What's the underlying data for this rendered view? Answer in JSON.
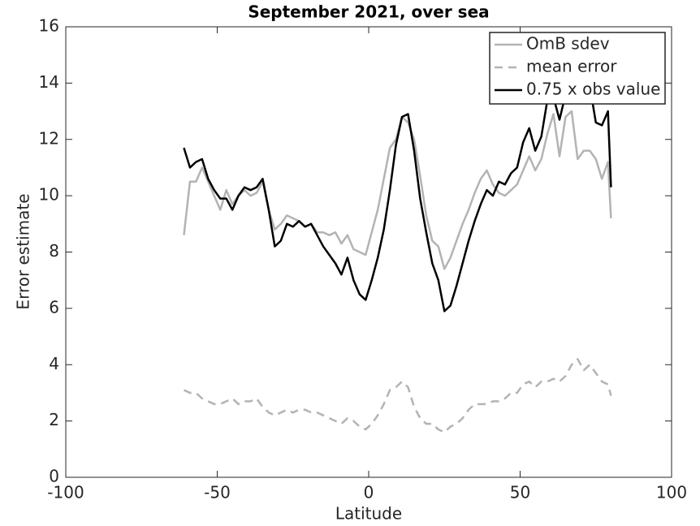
{
  "chart_data": {
    "type": "line",
    "title": "September 2021, over sea",
    "xlabel": "Latitude",
    "ylabel": "Error estimate",
    "x": [
      -61,
      -59,
      -57,
      -55,
      -53,
      -51,
      -49,
      -47,
      -45,
      -43,
      -41,
      -39,
      -37,
      -35,
      -33,
      -31,
      -29,
      -27,
      -25,
      -23,
      -21,
      -19,
      -17,
      -15,
      -13,
      -11,
      -9,
      -7,
      -5,
      -3,
      -1,
      1,
      3,
      5,
      7,
      9,
      11,
      13,
      15,
      17,
      19,
      21,
      23,
      25,
      27,
      29,
      31,
      33,
      35,
      37,
      39,
      41,
      43,
      45,
      47,
      49,
      51,
      53,
      55,
      57,
      59,
      61,
      63,
      65,
      67,
      69,
      71,
      73,
      75,
      77,
      79,
      80
    ],
    "series": [
      {
        "name": "OmB sdev",
        "color": "#b3b3b3",
        "style": "solid",
        "values": [
          8.6,
          10.5,
          10.5,
          11.0,
          10.5,
          10.0,
          9.5,
          10.2,
          9.7,
          10.0,
          10.2,
          10.0,
          10.1,
          10.5,
          9.5,
          8.8,
          9.0,
          9.3,
          9.2,
          9.1,
          8.9,
          9.0,
          8.7,
          8.7,
          8.6,
          8.7,
          8.3,
          8.6,
          8.1,
          8.0,
          7.9,
          8.7,
          9.5,
          10.6,
          11.7,
          12.0,
          12.8,
          12.6,
          12.0,
          10.7,
          9.3,
          8.4,
          8.2,
          7.4,
          7.8,
          8.4,
          9.0,
          9.5,
          10.1,
          10.6,
          10.9,
          10.4,
          10.1,
          10.0,
          10.2,
          10.4,
          10.9,
          11.4,
          10.9,
          11.3,
          12.2,
          12.9,
          11.4,
          12.8,
          13.0,
          11.3,
          11.6,
          11.6,
          11.3,
          10.6,
          11.2,
          9.2
        ]
      },
      {
        "name": "mean error",
        "color": "#b3b3b3",
        "style": "dashed",
        "values": [
          3.1,
          3.0,
          3.0,
          2.8,
          2.7,
          2.6,
          2.6,
          2.7,
          2.8,
          2.6,
          2.7,
          2.7,
          2.8,
          2.5,
          2.3,
          2.2,
          2.3,
          2.4,
          2.3,
          2.4,
          2.4,
          2.3,
          2.3,
          2.2,
          2.1,
          2.0,
          1.9,
          2.1,
          2.0,
          1.8,
          1.7,
          1.9,
          2.2,
          2.6,
          3.1,
          3.2,
          3.4,
          3.2,
          2.5,
          2.1,
          1.9,
          1.9,
          1.7,
          1.6,
          1.8,
          1.9,
          2.1,
          2.4,
          2.6,
          2.6,
          2.6,
          2.7,
          2.7,
          2.8,
          3.0,
          3.0,
          3.3,
          3.4,
          3.2,
          3.4,
          3.4,
          3.5,
          3.4,
          3.6,
          4.0,
          4.2,
          3.8,
          4.0,
          3.7,
          3.4,
          3.3,
          2.9
        ]
      },
      {
        "name": "0.75 x obs value",
        "color": "#000000",
        "style": "solid",
        "values": [
          11.7,
          11.0,
          11.2,
          11.3,
          10.6,
          10.2,
          9.9,
          9.9,
          9.5,
          10.0,
          10.3,
          10.2,
          10.3,
          10.6,
          9.5,
          8.2,
          8.4,
          9.0,
          8.9,
          9.1,
          8.9,
          9.0,
          8.6,
          8.2,
          7.9,
          7.6,
          7.2,
          7.8,
          7.0,
          6.5,
          6.3,
          7.0,
          7.8,
          8.8,
          10.2,
          11.8,
          12.8,
          12.9,
          11.6,
          9.9,
          8.7,
          7.6,
          7.0,
          5.9,
          6.1,
          6.8,
          7.6,
          8.4,
          9.1,
          9.7,
          10.2,
          10.0,
          10.5,
          10.4,
          10.8,
          11.0,
          11.9,
          12.4,
          11.6,
          12.1,
          13.4,
          13.5,
          12.7,
          13.6,
          13.9,
          13.6,
          13.4,
          13.9,
          12.6,
          12.5,
          13.0,
          10.3
        ]
      }
    ],
    "xlim": [
      -100,
      100
    ],
    "xticks": [
      -100,
      -50,
      0,
      50,
      100
    ],
    "ylim": [
      0,
      16
    ],
    "yticks": [
      0,
      2,
      4,
      6,
      8,
      10,
      12,
      14,
      16
    ],
    "grid": false,
    "legend": "top-right"
  }
}
